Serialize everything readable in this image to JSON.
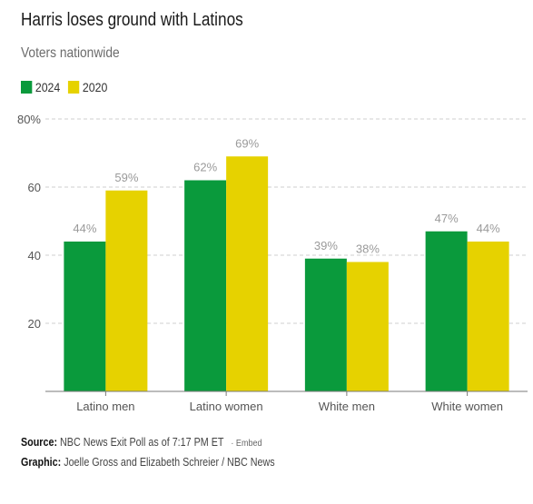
{
  "header": {
    "title": "Harris loses ground with Latinos",
    "subtitle": "Voters nationwide"
  },
  "colors": {
    "series_2024": "#0a9a3c",
    "series_2020": "#e6d200",
    "grid": "#cfcfcf",
    "axis": "#7a7a7a",
    "value_label": "#9a9a9a",
    "tick_label": "#555555"
  },
  "chart_data": {
    "type": "bar",
    "title": "Harris loses ground with Latinos",
    "subtitle": "Voters nationwide",
    "categories": [
      "Latino men",
      "Latino women",
      "White men",
      "White women"
    ],
    "series": [
      {
        "name": "2024",
        "values": [
          44,
          62,
          39,
          47
        ],
        "labels": [
          "44%",
          "62%",
          "39%",
          "47%"
        ]
      },
      {
        "name": "2020",
        "values": [
          59,
          69,
          38,
          44
        ],
        "labels": [
          "59%",
          "69%",
          "38%",
          "44%"
        ]
      }
    ],
    "ylim": [
      0,
      80
    ],
    "yticks": [
      20,
      40,
      60,
      80
    ],
    "ytick_labels": [
      "20",
      "40",
      "60",
      "80%"
    ],
    "grid": true,
    "legend": "top-left",
    "xlabel": "",
    "ylabel": ""
  },
  "footer": {
    "source_label": "Source:",
    "source_text": "NBC News Exit Poll as of 7:17 PM ET",
    "embed_label": "· Embed",
    "graphic_label": "Graphic:",
    "graphic_text": "Joelle Gross and Elizabeth Schreier / NBC News"
  }
}
